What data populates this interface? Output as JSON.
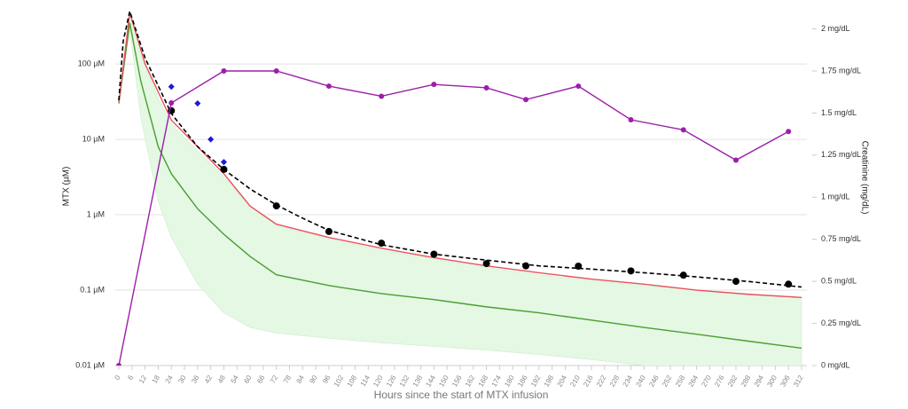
{
  "chart_data": {
    "type": "line",
    "x_label": "Hours since the start of MTX infusion",
    "y_label": "MTX (µM)",
    "y2_label": "Creatinine (mg/dL)",
    "xlim": [
      0,
      312
    ],
    "xticks": [
      0,
      6,
      12,
      18,
      24,
      30,
      36,
      42,
      48,
      54,
      60,
      66,
      72,
      78,
      84,
      90,
      96,
      102,
      108,
      114,
      120,
      126,
      132,
      138,
      144,
      150,
      156,
      162,
      168,
      174,
      180,
      186,
      192,
      198,
      204,
      210,
      216,
      222,
      228,
      234,
      240,
      246,
      252,
      258,
      264,
      270,
      276,
      282,
      288,
      294,
      300,
      306,
      312
    ],
    "ylim": [
      0.01,
      600
    ],
    "y_log": true,
    "yticks": [
      {
        "value": 0.01,
        "label": "0.01 µM"
      },
      {
        "value": 0.1,
        "label": "0.1 µM"
      },
      {
        "value": 1,
        "label": "1 µM"
      },
      {
        "value": 10,
        "label": "10 µM"
      },
      {
        "value": 100,
        "label": "100 µM"
      }
    ],
    "grid": true,
    "y2lim": [
      0,
      2.14
    ],
    "y2ticks": [
      {
        "value": 0,
        "label": "0 mg/dL"
      },
      {
        "value": 0.25,
        "label": "0.25 mg/dL"
      },
      {
        "value": 0.5,
        "label": "0.5 mg/dL"
      },
      {
        "value": 0.75,
        "label": "0.75 mg/dL"
      },
      {
        "value": 1,
        "label": "1 mg/dL"
      },
      {
        "value": 1.25,
        "label": "1.25 mg/dL"
      },
      {
        "value": 1.5,
        "label": "1.5 mg/dL"
      },
      {
        "value": 1.75,
        "label": "1.75 mg/dL"
      },
      {
        "value": 2,
        "label": "2 mg/dL"
      }
    ],
    "band": {
      "color": "#e4f8e4",
      "x": [
        0,
        5,
        10,
        18,
        24,
        36,
        48,
        60,
        72,
        96,
        120,
        144,
        168,
        192,
        216,
        240,
        264,
        288,
        312
      ],
      "upper": [
        30,
        480,
        150,
        35,
        16,
        7,
        3.2,
        1.3,
        0.72,
        0.48,
        0.34,
        0.26,
        0.2,
        0.16,
        0.135,
        0.115,
        0.1,
        0.088,
        0.08
      ],
      "lower": [
        30,
        300,
        20,
        1.5,
        0.5,
        0.12,
        0.05,
        0.032,
        0.027,
        0.023,
        0.02,
        0.018,
        0.016,
        0.014,
        0.012,
        0.01,
        0.0095,
        0.009,
        0.0085
      ]
    },
    "series": [
      {
        "color": "#4a9e2f",
        "style": "solid",
        "x": [
          0,
          5,
          10,
          18,
          24,
          36,
          48,
          60,
          72,
          96,
          120,
          144,
          168,
          192,
          216,
          240,
          264,
          288,
          312
        ],
        "values": [
          30,
          350,
          60,
          8,
          3.5,
          1.2,
          0.55,
          0.28,
          0.16,
          0.115,
          0.09,
          0.075,
          0.06,
          0.05,
          0.04,
          0.032,
          0.026,
          0.021,
          0.017
        ]
      },
      {
        "color": "#e8505b",
        "style": "solid",
        "x": [
          0,
          5,
          12,
          24,
          36,
          48,
          60,
          72,
          96,
          120,
          144,
          168,
          192,
          216,
          240,
          264,
          288,
          312
        ],
        "values": [
          30,
          480,
          100,
          18,
          8,
          3.5,
          1.3,
          0.75,
          0.5,
          0.36,
          0.27,
          0.21,
          0.17,
          0.14,
          0.12,
          0.1,
          0.088,
          0.08
        ]
      },
      {
        "color": "#000000",
        "style": "dashed",
        "x": [
          0,
          2,
          5,
          12,
          24,
          36,
          48,
          60,
          72,
          84,
          96,
          120,
          144,
          168,
          192,
          216,
          240,
          264,
          288,
          312
        ],
        "values": [
          33,
          200,
          500,
          120,
          22,
          8,
          4,
          2.2,
          1.35,
          0.9,
          0.62,
          0.4,
          0.3,
          0.25,
          0.21,
          0.19,
          0.17,
          0.15,
          0.13,
          0.11
        ]
      },
      {
        "color": "#000000",
        "style": "dots",
        "x": [
          24,
          48,
          72,
          96,
          120,
          144,
          168,
          186,
          210,
          234,
          258,
          282,
          306
        ],
        "values": [
          24,
          4,
          1.31,
          0.6,
          0.42,
          0.3,
          0.225,
          0.21,
          0.208,
          0.18,
          0.158,
          0.131,
          0.12
        ]
      },
      {
        "color": "#1a1adb",
        "style": "diamonds",
        "x": [
          24,
          36,
          42,
          48
        ],
        "values": [
          50,
          30,
          10,
          5
        ]
      },
      {
        "color": "#9b1fa8",
        "style": "line-dots",
        "axis": "y2",
        "x": [
          0,
          24,
          48,
          72,
          96,
          120,
          144,
          168,
          186,
          210,
          234,
          258,
          282,
          306
        ],
        "values": [
          0,
          1.56,
          1.75,
          1.75,
          1.66,
          1.6,
          1.67,
          1.65,
          1.58,
          1.66,
          1.46,
          1.4,
          1.22,
          1.39
        ]
      }
    ]
  }
}
